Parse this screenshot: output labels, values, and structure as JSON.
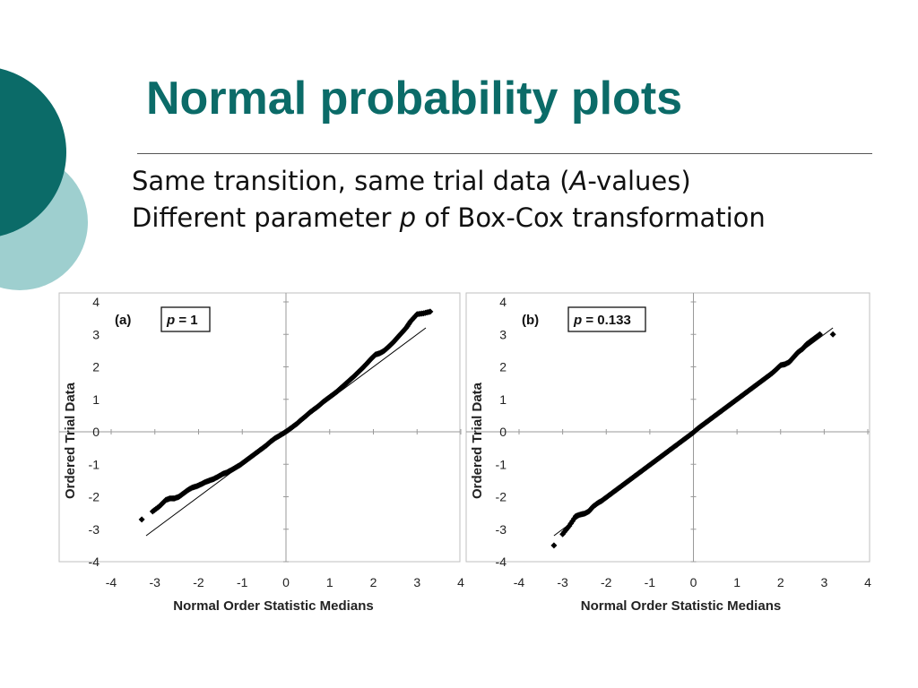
{
  "slide": {
    "title": "Normal probability plots",
    "subtitle_line1_a": "Same transition, same trial data (",
    "subtitle_line1_b": "A",
    "subtitle_line1_c": "-values)",
    "subtitle_line2_a": "Different parameter ",
    "subtitle_line2_b": "p",
    "subtitle_line2_c": " of Box-Cox transformation",
    "colors": {
      "title": "#0b6b68",
      "circle_dark": "#0b6b68",
      "circle_light": "#9ecfcf"
    }
  },
  "chart_data": [
    {
      "type": "scatter",
      "panel_label": "(a)",
      "param_label_a": "p",
      "param_label_b": " = 1",
      "xlabel": "Normal Order Statistic Medians",
      "ylabel": "Ordered Trial Data",
      "xlim": [
        -4,
        4
      ],
      "ylim": [
        -4,
        4
      ],
      "xticks": [
        "-4",
        "-3",
        "-2",
        "-1",
        "0",
        "1",
        "2",
        "3",
        "4"
      ],
      "yticks": [
        "4",
        "3",
        "2",
        "1",
        "0",
        "-1",
        "-2",
        "-3",
        "-4"
      ],
      "grid": false,
      "fit_line": {
        "x": [
          -3.2,
          3.2
        ],
        "y": [
          -3.2,
          3.2
        ]
      },
      "points": {
        "x": [
          -3.3,
          -3.05,
          -2.9,
          -2.75,
          -2.65,
          -2.55,
          -2.45,
          -2.35,
          -2.25,
          -2.15,
          -2.05,
          -1.95,
          -1.85,
          -1.75,
          -1.65,
          -1.55,
          -1.45,
          -1.35,
          -1.25,
          -1.15,
          -1.05,
          -0.95,
          -0.85,
          -0.75,
          -0.65,
          -0.55,
          -0.45,
          -0.35,
          -0.25,
          -0.15,
          -0.05,
          0.05,
          0.15,
          0.25,
          0.35,
          0.45,
          0.55,
          0.65,
          0.75,
          0.85,
          0.95,
          1.05,
          1.15,
          1.25,
          1.35,
          1.45,
          1.55,
          1.65,
          1.75,
          1.85,
          1.95,
          2.05,
          2.15,
          2.25,
          2.35,
          2.45,
          2.55,
          2.65,
          2.75,
          2.85,
          3.0,
          3.15,
          3.3
        ],
        "y": [
          -2.7,
          -2.45,
          -2.3,
          -2.1,
          -2.05,
          -2.05,
          -2.0,
          -1.9,
          -1.8,
          -1.72,
          -1.68,
          -1.62,
          -1.55,
          -1.5,
          -1.45,
          -1.38,
          -1.3,
          -1.25,
          -1.18,
          -1.1,
          -1.02,
          -0.92,
          -0.82,
          -0.72,
          -0.62,
          -0.52,
          -0.42,
          -0.3,
          -0.2,
          -0.12,
          -0.04,
          0.05,
          0.15,
          0.25,
          0.37,
          0.48,
          0.6,
          0.7,
          0.8,
          0.92,
          1.02,
          1.12,
          1.22,
          1.34,
          1.46,
          1.58,
          1.7,
          1.83,
          1.96,
          2.1,
          2.25,
          2.38,
          2.42,
          2.5,
          2.62,
          2.75,
          2.9,
          3.05,
          3.2,
          3.4,
          3.62,
          3.65,
          3.7
        ]
      }
    },
    {
      "type": "scatter",
      "panel_label": "(b)",
      "param_label_a": "p",
      "param_label_b": " = 0.133",
      "xlabel": "Normal Order Statistic Medians",
      "ylabel": "Ordered Trial Data",
      "xlim": [
        -4,
        4
      ],
      "ylim": [
        -4,
        4
      ],
      "xticks": [
        "-4",
        "-3",
        "-2",
        "-1",
        "0",
        "1",
        "2",
        "3",
        "4"
      ],
      "yticks": [
        "4",
        "3",
        "2",
        "1",
        "0",
        "-1",
        "-2",
        "-3",
        "-4"
      ],
      "grid": false,
      "fit_line": {
        "x": [
          -3.2,
          3.2
        ],
        "y": [
          -3.2,
          3.2
        ]
      },
      "points": {
        "x": [
          -3.2,
          -3.0,
          -2.85,
          -2.7,
          -2.6,
          -2.5,
          -2.4,
          -2.3,
          -2.2,
          -2.1,
          -2.0,
          -1.9,
          -1.8,
          -1.7,
          -1.6,
          -1.5,
          -1.4,
          -1.3,
          -1.2,
          -1.1,
          -1.0,
          -0.9,
          -0.8,
          -0.7,
          -0.6,
          -0.5,
          -0.4,
          -0.3,
          -0.2,
          -0.1,
          0.0,
          0.1,
          0.2,
          0.3,
          0.4,
          0.5,
          0.6,
          0.7,
          0.8,
          0.9,
          1.0,
          1.1,
          1.2,
          1.3,
          1.4,
          1.5,
          1.6,
          1.7,
          1.8,
          1.9,
          2.0,
          2.1,
          2.2,
          2.3,
          2.4,
          2.5,
          2.6,
          2.7,
          2.8,
          2.9,
          3.2
        ],
        "y": [
          -3.5,
          -3.15,
          -2.9,
          -2.6,
          -2.55,
          -2.52,
          -2.45,
          -2.3,
          -2.2,
          -2.12,
          -2.02,
          -1.92,
          -1.82,
          -1.72,
          -1.62,
          -1.52,
          -1.42,
          -1.32,
          -1.22,
          -1.12,
          -1.02,
          -0.92,
          -0.82,
          -0.72,
          -0.62,
          -0.52,
          -0.42,
          -0.32,
          -0.22,
          -0.12,
          -0.02,
          0.1,
          0.2,
          0.3,
          0.4,
          0.5,
          0.6,
          0.7,
          0.8,
          0.9,
          1.0,
          1.1,
          1.2,
          1.3,
          1.4,
          1.5,
          1.6,
          1.7,
          1.8,
          1.92,
          2.05,
          2.08,
          2.15,
          2.3,
          2.45,
          2.55,
          2.7,
          2.8,
          2.9,
          3.0,
          3.0
        ]
      }
    }
  ]
}
